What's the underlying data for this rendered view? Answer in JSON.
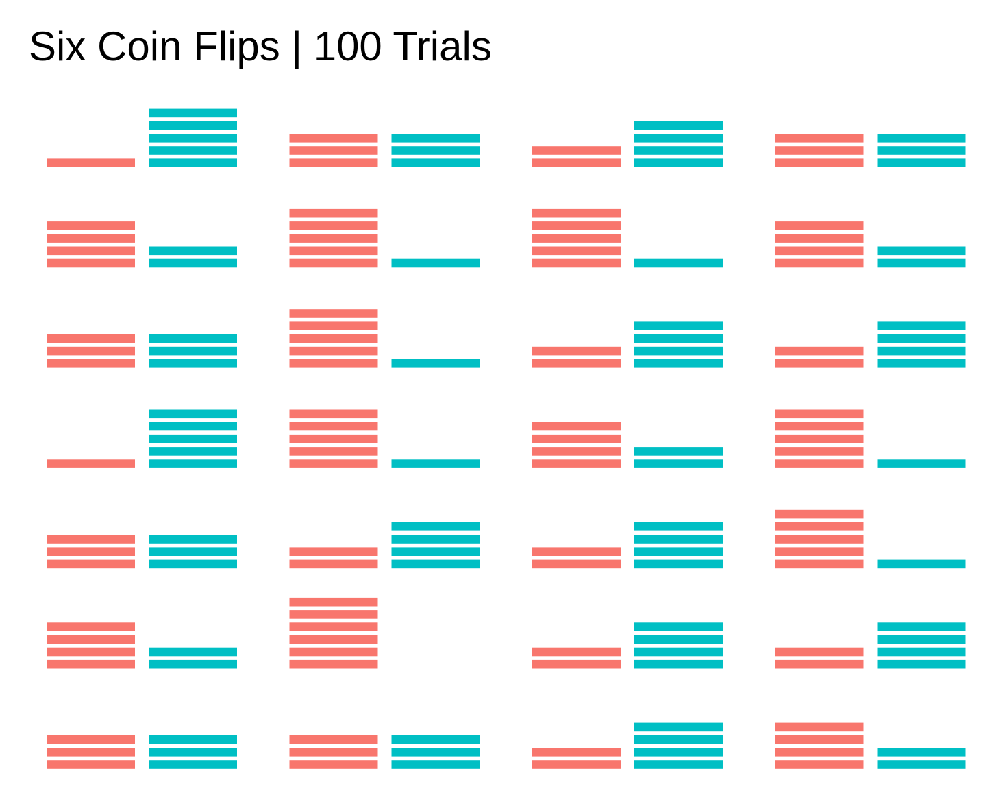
{
  "chart_data": {
    "type": "bar",
    "title": "Six Coin Flips | 100 Trials",
    "xlabel": "",
    "ylabel": "",
    "grid": false,
    "legend": "none",
    "layout": {
      "rows": 7,
      "cols": 4
    },
    "categories": [
      "heads",
      "tails"
    ],
    "colors": {
      "heads": "#F8766D",
      "tails": "#00BFC4"
    },
    "ylim": [
      0,
      6
    ],
    "panels": [
      {
        "heads": 1,
        "tails": 5
      },
      {
        "heads": 3,
        "tails": 3
      },
      {
        "heads": 2,
        "tails": 4
      },
      {
        "heads": 3,
        "tails": 3
      },
      {
        "heads": 4,
        "tails": 2
      },
      {
        "heads": 5,
        "tails": 1
      },
      {
        "heads": 5,
        "tails": 1
      },
      {
        "heads": 4,
        "tails": 2
      },
      {
        "heads": 3,
        "tails": 3
      },
      {
        "heads": 5,
        "tails": 1
      },
      {
        "heads": 2,
        "tails": 4
      },
      {
        "heads": 2,
        "tails": 4
      },
      {
        "heads": 1,
        "tails": 5
      },
      {
        "heads": 5,
        "tails": 1
      },
      {
        "heads": 4,
        "tails": 2
      },
      {
        "heads": 5,
        "tails": 1
      },
      {
        "heads": 3,
        "tails": 3
      },
      {
        "heads": 2,
        "tails": 4
      },
      {
        "heads": 2,
        "tails": 4
      },
      {
        "heads": 5,
        "tails": 1
      },
      {
        "heads": 4,
        "tails": 2
      },
      {
        "heads": 6,
        "tails": 0
      },
      {
        "heads": 2,
        "tails": 4
      },
      {
        "heads": 2,
        "tails": 4
      },
      {
        "heads": 3,
        "tails": 3
      },
      {
        "heads": 3,
        "tails": 3
      },
      {
        "heads": 2,
        "tails": 4
      },
      {
        "heads": 4,
        "tails": 2
      }
    ]
  }
}
